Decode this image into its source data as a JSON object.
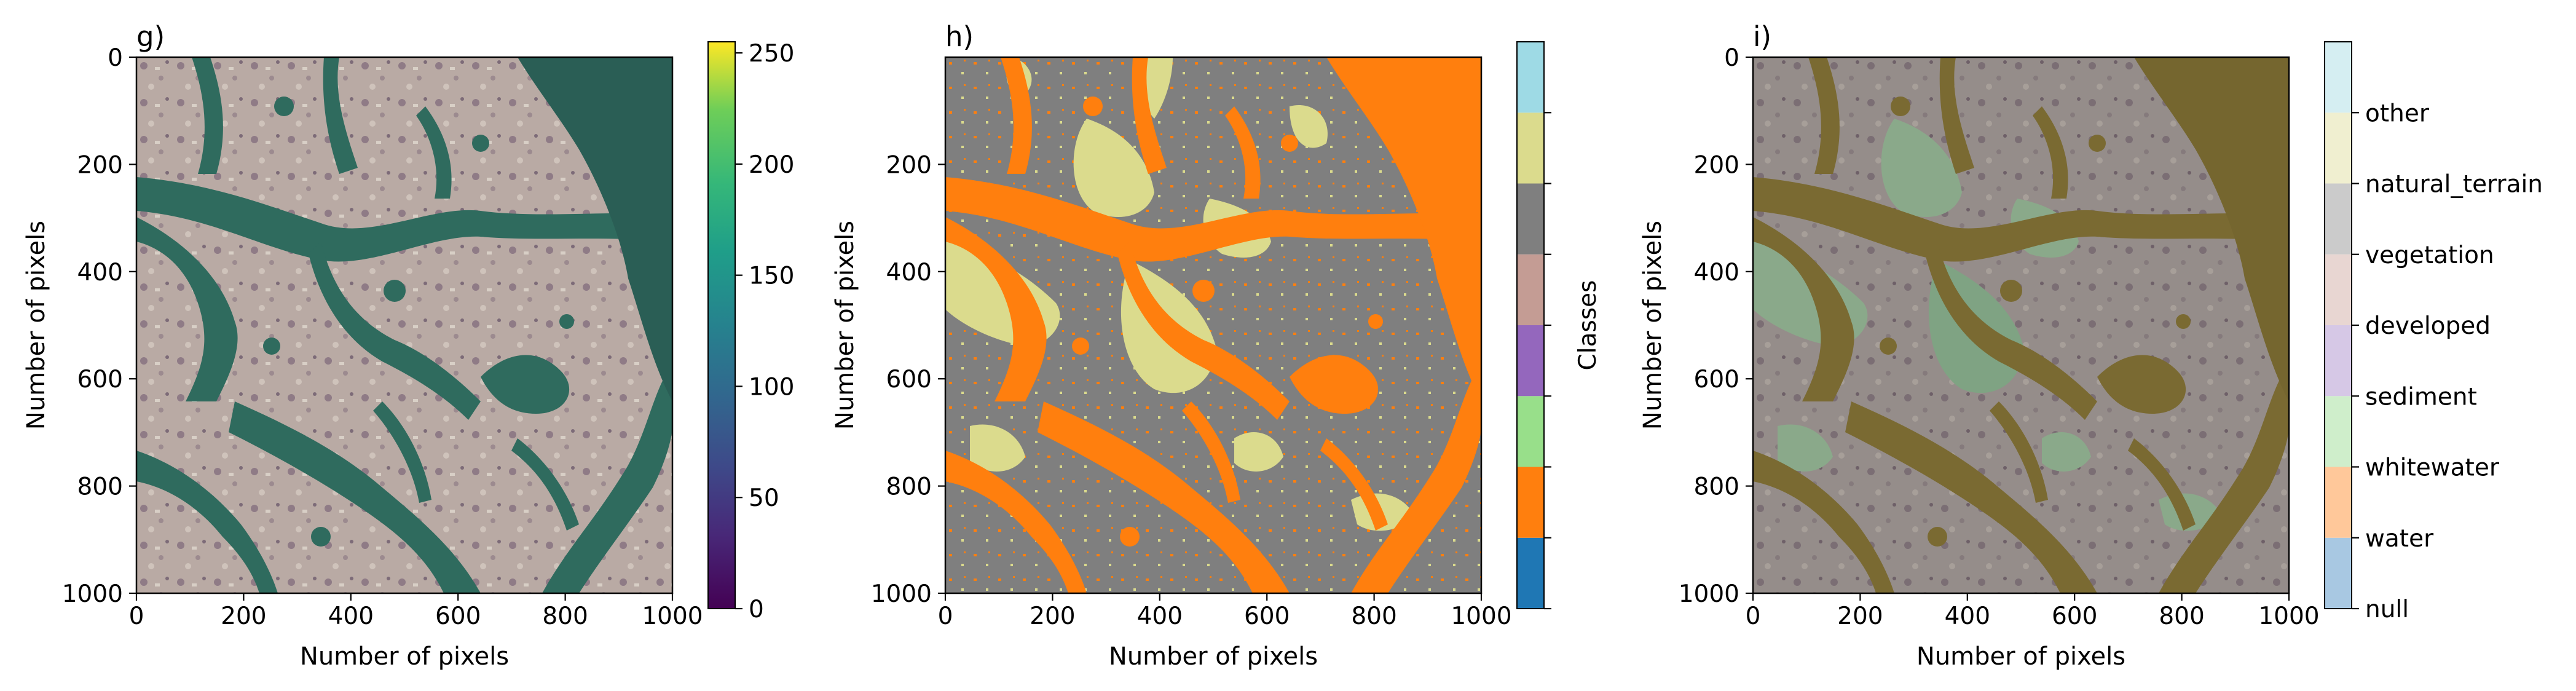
{
  "chart_data": [
    {
      "type": "heatmap",
      "panel": "g)",
      "content": "satellite RGB image",
      "xlabel": "Number of pixels",
      "ylabel": "Number of pixels",
      "xlim": [
        0,
        1000
      ],
      "ylim": [
        1000,
        0
      ],
      "x_ticks": [
        "0",
        "200",
        "400",
        "600",
        "800",
        "1000"
      ],
      "y_ticks": [
        "0",
        "200",
        "400",
        "600",
        "800",
        "1000"
      ],
      "colorbar": {
        "colormap": "viridis",
        "range": [
          0,
          255
        ],
        "ticks": [
          "0",
          "50",
          "100",
          "150",
          "200",
          "250"
        ]
      }
    },
    {
      "type": "heatmap",
      "panel": "h)",
      "content": "class map",
      "xlabel": "Number of pixels",
      "ylabel": "Number of pixels",
      "xlim": [
        0,
        1000
      ],
      "ylim": [
        1000,
        0
      ],
      "x_ticks": [
        "0",
        "200",
        "400",
        "600",
        "800",
        "1000"
      ],
      "y_ticks": [
        "200",
        "400",
        "600",
        "800",
        "1000"
      ],
      "colorbar": {
        "label": "Classes",
        "colors": [
          "#1f77b4",
          "#ff7f0e",
          "#98df8a",
          "#9467bd",
          "#c49c94",
          "#7f7f7f",
          "#dbdb8d",
          "#9edae5"
        ]
      }
    },
    {
      "type": "heatmap",
      "panel": "i)",
      "content": "class overlay on satellite image",
      "xlabel": "Number of pixels",
      "ylabel": "Number of pixels",
      "xlim": [
        0,
        1000
      ],
      "ylim": [
        1000,
        0
      ],
      "x_ticks": [
        "0",
        "200",
        "400",
        "600",
        "800",
        "1000"
      ],
      "y_ticks": [
        "0",
        "200",
        "400",
        "600",
        "800",
        "1000"
      ],
      "colorbar": {
        "classes": [
          "null",
          "water",
          "whitewater",
          "sediment",
          "developed",
          "vegetation",
          "natural_terrain",
          "other"
        ],
        "colors": [
          "#a8c8e2",
          "#ffc89a",
          "#cfeecb",
          "#d6c8e6",
          "#e8d6d2",
          "#cbcbcb",
          "#f0efd0",
          "#d5eef2"
        ]
      }
    }
  ],
  "colors": {
    "water_green": "#2f6b5e",
    "land_gray": "#b9aaa4",
    "class_orange": "#ff7f0e",
    "class_gray": "#7f7f7f",
    "class_khaki": "#dbdb8d",
    "overlay_olive": "#7a6a32",
    "overlay_land": "#8f8a87",
    "overlay_green": "#7fa383"
  }
}
